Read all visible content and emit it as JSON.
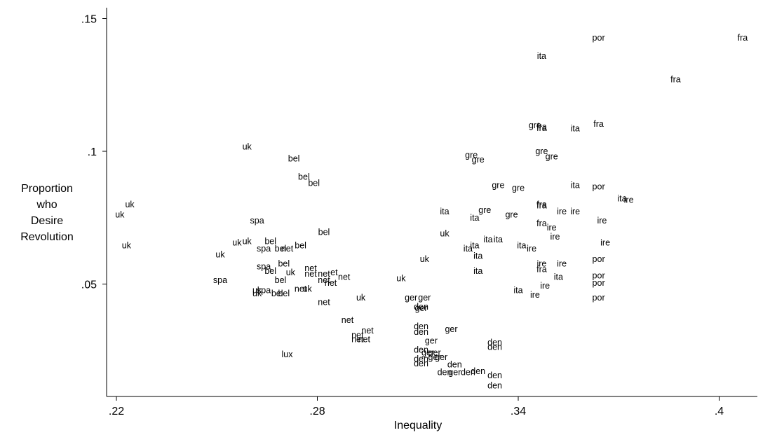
{
  "chart_data": {
    "type": "scatter",
    "xlabel": "Inequality",
    "ylabel_lines": [
      "Proportion",
      "who",
      "Desire",
      "Revolution"
    ],
    "xlim": [
      0.22,
      0.4
    ],
    "ylim": [
      0.0,
      0.15
    ],
    "x_ticks": [
      0.22,
      0.28,
      0.34,
      0.4
    ],
    "x_tick_labels": [
      ".22",
      ".28",
      ".34",
      ".4"
    ],
    "y_ticks": [
      0.05,
      0.1,
      0.15
    ],
    "y_tick_labels": [
      ".05",
      ".1",
      ".15"
    ],
    "grid": false,
    "marker": "country label",
    "points": [
      {
        "label": "fra",
        "x": 0.407,
        "y": 0.1427
      },
      {
        "label": "por",
        "x": 0.364,
        "y": 0.1427
      },
      {
        "label": "ita",
        "x": 0.347,
        "y": 0.1359
      },
      {
        "label": "fra",
        "x": 0.387,
        "y": 0.127
      },
      {
        "label": "fra",
        "x": 0.364,
        "y": 0.1103
      },
      {
        "label": "ita",
        "x": 0.357,
        "y": 0.1086
      },
      {
        "label": "gre",
        "x": 0.345,
        "y": 0.1098
      },
      {
        "label": "fra",
        "x": 0.347,
        "y": 0.1092
      },
      {
        "label": "fra",
        "x": 0.347,
        "y": 0.1087
      },
      {
        "label": "gre",
        "x": 0.326,
        "y": 0.0985
      },
      {
        "label": "gre",
        "x": 0.328,
        "y": 0.0968
      },
      {
        "label": "gre",
        "x": 0.347,
        "y": 0.1
      },
      {
        "label": "gre",
        "x": 0.35,
        "y": 0.098
      },
      {
        "label": "uk",
        "x": 0.259,
        "y": 0.1017
      },
      {
        "label": "bel",
        "x": 0.273,
        "y": 0.0972
      },
      {
        "label": "bel",
        "x": 0.276,
        "y": 0.0904
      },
      {
        "label": "bel",
        "x": 0.279,
        "y": 0.088
      },
      {
        "label": "gre",
        "x": 0.334,
        "y": 0.0872
      },
      {
        "label": "gre",
        "x": 0.34,
        "y": 0.0861
      },
      {
        "label": "ita",
        "x": 0.357,
        "y": 0.0872
      },
      {
        "label": "por",
        "x": 0.364,
        "y": 0.0867
      },
      {
        "label": "ita",
        "x": 0.371,
        "y": 0.0822
      },
      {
        "label": "ire",
        "x": 0.373,
        "y": 0.0817
      },
      {
        "label": "fra",
        "x": 0.347,
        "y": 0.08
      },
      {
        "label": "fra",
        "x": 0.347,
        "y": 0.0796
      },
      {
        "label": "ire",
        "x": 0.353,
        "y": 0.0773
      },
      {
        "label": "ire",
        "x": 0.357,
        "y": 0.0773
      },
      {
        "label": "gre",
        "x": 0.33,
        "y": 0.0778
      },
      {
        "label": "gre",
        "x": 0.338,
        "y": 0.0761
      },
      {
        "label": "ita",
        "x": 0.318,
        "y": 0.0773
      },
      {
        "label": "ita",
        "x": 0.327,
        "y": 0.075
      },
      {
        "label": "ire",
        "x": 0.365,
        "y": 0.0739
      },
      {
        "label": "fra",
        "x": 0.347,
        "y": 0.0728
      },
      {
        "label": "ire",
        "x": 0.35,
        "y": 0.0712
      },
      {
        "label": "ire",
        "x": 0.351,
        "y": 0.0678
      },
      {
        "label": "ita",
        "x": 0.331,
        "y": 0.0667
      },
      {
        "label": "ita",
        "x": 0.334,
        "y": 0.0667
      },
      {
        "label": "ita",
        "x": 0.327,
        "y": 0.0645
      },
      {
        "label": "ita",
        "x": 0.341,
        "y": 0.0645
      },
      {
        "label": "ire",
        "x": 0.344,
        "y": 0.0633
      },
      {
        "label": "ire",
        "x": 0.366,
        "y": 0.0656
      },
      {
        "label": "uk",
        "x": 0.224,
        "y": 0.08
      },
      {
        "label": "uk",
        "x": 0.221,
        "y": 0.0761
      },
      {
        "label": "spa",
        "x": 0.262,
        "y": 0.0739
      },
      {
        "label": "bel",
        "x": 0.282,
        "y": 0.0695
      },
      {
        "label": "uk",
        "x": 0.318,
        "y": 0.069
      },
      {
        "label": "uk",
        "x": 0.256,
        "y": 0.0656
      },
      {
        "label": "uk",
        "x": 0.259,
        "y": 0.0661
      },
      {
        "label": "uk",
        "x": 0.223,
        "y": 0.0645
      },
      {
        "label": "bel",
        "x": 0.266,
        "y": 0.0661
      },
      {
        "label": "bel",
        "x": 0.269,
        "y": 0.0633
      },
      {
        "label": "net",
        "x": 0.271,
        "y": 0.0633
      },
      {
        "label": "bel",
        "x": 0.275,
        "y": 0.0645
      },
      {
        "label": "spa",
        "x": 0.264,
        "y": 0.0633
      },
      {
        "label": "ita",
        "x": 0.325,
        "y": 0.0633
      },
      {
        "label": "ita",
        "x": 0.328,
        "y": 0.0606
      },
      {
        "label": "uk",
        "x": 0.251,
        "y": 0.0611
      },
      {
        "label": "uk",
        "x": 0.312,
        "y": 0.0594
      },
      {
        "label": "por",
        "x": 0.364,
        "y": 0.0594
      },
      {
        "label": "ire",
        "x": 0.347,
        "y": 0.0577
      },
      {
        "label": "ire",
        "x": 0.353,
        "y": 0.0577
      },
      {
        "label": "fra",
        "x": 0.347,
        "y": 0.0555
      },
      {
        "label": "ita",
        "x": 0.328,
        "y": 0.0549
      },
      {
        "label": "spa",
        "x": 0.264,
        "y": 0.0566
      },
      {
        "label": "bel",
        "x": 0.27,
        "y": 0.0577
      },
      {
        "label": "bel",
        "x": 0.266,
        "y": 0.0549
      },
      {
        "label": "uk",
        "x": 0.272,
        "y": 0.0543
      },
      {
        "label": "net",
        "x": 0.278,
        "y": 0.056
      },
      {
        "label": "net",
        "x": 0.278,
        "y": 0.0538
      },
      {
        "label": "net",
        "x": 0.282,
        "y": 0.0538
      },
      {
        "label": "et",
        "x": 0.285,
        "y": 0.0543
      },
      {
        "label": "net",
        "x": 0.288,
        "y": 0.0527
      },
      {
        "label": "net",
        "x": 0.282,
        "y": 0.0515
      },
      {
        "label": "net",
        "x": 0.284,
        "y": 0.0504
      },
      {
        "label": "uk",
        "x": 0.305,
        "y": 0.0521
      },
      {
        "label": "ita",
        "x": 0.352,
        "y": 0.0527
      },
      {
        "label": "por",
        "x": 0.364,
        "y": 0.0532
      },
      {
        "label": "por",
        "x": 0.364,
        "y": 0.0504
      },
      {
        "label": "ire",
        "x": 0.348,
        "y": 0.0493
      },
      {
        "label": "spa",
        "x": 0.251,
        "y": 0.0515
      },
      {
        "label": "bel",
        "x": 0.269,
        "y": 0.0515
      },
      {
        "label": "net",
        "x": 0.275,
        "y": 0.0482
      },
      {
        "label": "uk",
        "x": 0.277,
        "y": 0.0482
      },
      {
        "label": "uk",
        "x": 0.262,
        "y": 0.0476
      },
      {
        "label": "spa",
        "x": 0.264,
        "y": 0.0476
      },
      {
        "label": "uk",
        "x": 0.262,
        "y": 0.0465
      },
      {
        "label": "bel",
        "x": 0.268,
        "y": 0.0465
      },
      {
        "label": "bel",
        "x": 0.27,
        "y": 0.0465
      },
      {
        "label": "ita",
        "x": 0.34,
        "y": 0.0476
      },
      {
        "label": "ire",
        "x": 0.345,
        "y": 0.0459
      },
      {
        "label": "por",
        "x": 0.364,
        "y": 0.0448
      },
      {
        "label": "uk",
        "x": 0.293,
        "y": 0.0448
      },
      {
        "label": "net",
        "x": 0.282,
        "y": 0.0431
      },
      {
        "label": "ger",
        "x": 0.308,
        "y": 0.0448
      },
      {
        "label": "ger",
        "x": 0.312,
        "y": 0.0448
      },
      {
        "label": "den",
        "x": 0.311,
        "y": 0.0414
      },
      {
        "label": "ger",
        "x": 0.311,
        "y": 0.0409
      },
      {
        "label": "net",
        "x": 0.289,
        "y": 0.0364
      },
      {
        "label": "den",
        "x": 0.311,
        "y": 0.0341
      },
      {
        "label": "ger",
        "x": 0.32,
        "y": 0.033
      },
      {
        "label": "den",
        "x": 0.311,
        "y": 0.0319
      },
      {
        "label": "net",
        "x": 0.295,
        "y": 0.0324
      },
      {
        "label": "net",
        "x": 0.292,
        "y": 0.0308
      },
      {
        "label": "net",
        "x": 0.292,
        "y": 0.0291
      },
      {
        "label": "net",
        "x": 0.294,
        "y": 0.0291
      },
      {
        "label": "ger",
        "x": 0.314,
        "y": 0.0286
      },
      {
        "label": "den",
        "x": 0.333,
        "y": 0.028
      },
      {
        "label": "den",
        "x": 0.333,
        "y": 0.0263
      },
      {
        "label": "lux",
        "x": 0.271,
        "y": 0.0235
      },
      {
        "label": "den",
        "x": 0.311,
        "y": 0.0252
      },
      {
        "label": "ger",
        "x": 0.313,
        "y": 0.0241
      },
      {
        "label": "ger",
        "x": 0.315,
        "y": 0.0241
      },
      {
        "label": "den",
        "x": 0.311,
        "y": 0.0218
      },
      {
        "label": "ger",
        "x": 0.315,
        "y": 0.0224
      },
      {
        "label": "ger",
        "x": 0.317,
        "y": 0.0224
      },
      {
        "label": "den",
        "x": 0.311,
        "y": 0.0201
      },
      {
        "label": "den",
        "x": 0.321,
        "y": 0.0196
      },
      {
        "label": "den",
        "x": 0.318,
        "y": 0.0167
      },
      {
        "label": "ger",
        "x": 0.321,
        "y": 0.0167
      },
      {
        "label": "den",
        "x": 0.325,
        "y": 0.0167
      },
      {
        "label": "den",
        "x": 0.328,
        "y": 0.0172
      },
      {
        "label": "den",
        "x": 0.333,
        "y": 0.0156
      },
      {
        "label": "den",
        "x": 0.333,
        "y": 0.0117
      }
    ]
  }
}
